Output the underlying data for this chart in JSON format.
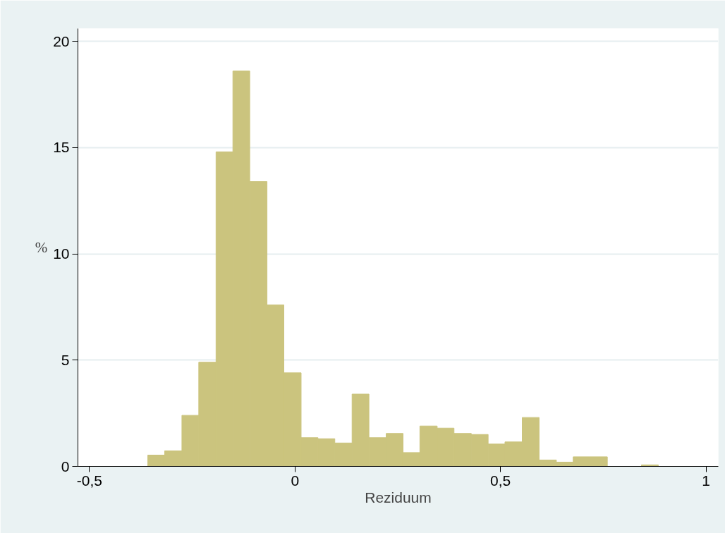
{
  "chart_data": {
    "type": "histogram",
    "xlabel": "Reziduum",
    "ylabel": "%",
    "bins": [
      -0.358,
      -0.317,
      -0.275,
      -0.234,
      -0.192,
      -0.151,
      -0.11,
      -0.068,
      -0.027,
      0.015,
      0.056,
      0.097,
      0.139,
      0.18,
      0.222,
      0.263,
      0.304,
      0.346,
      0.387,
      0.429,
      0.47,
      0.511,
      0.553,
      0.594,
      0.636,
      0.677,
      0.718,
      0.76,
      0.801,
      0.843,
      0.884
    ],
    "values": [
      0.53,
      0.73,
      2.4,
      4.9,
      14.8,
      18.6,
      13.4,
      7.6,
      4.4,
      1.35,
      1.3,
      1.1,
      3.4,
      1.35,
      1.55,
      0.65,
      1.9,
      1.8,
      1.55,
      1.5,
      1.05,
      1.15,
      2.3,
      0.3,
      0.2,
      0.45,
      0.45,
      0,
      0,
      0.07
    ],
    "color": "#cbc47e",
    "xlim": [
      -0.528,
      1.03
    ],
    "ylim": [
      0,
      20.6
    ],
    "xticks": [
      {
        "value": -0.5,
        "label": "-0,5"
      },
      0,
      {
        "value": 0.5,
        "label": "0,5"
      },
      1
    ],
    "yticks": [
      0,
      5,
      10,
      15,
      20
    ],
    "grid": "y"
  }
}
